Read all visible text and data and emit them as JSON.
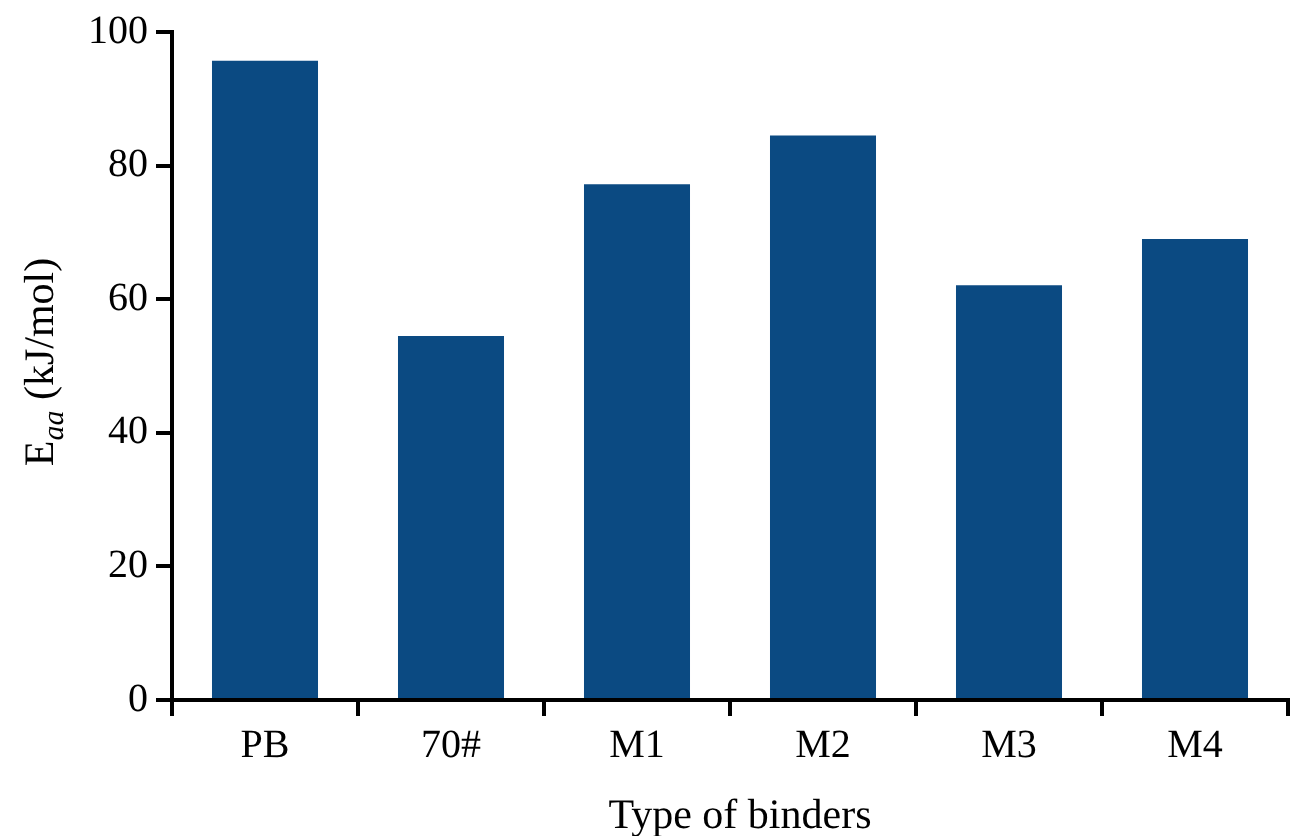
{
  "chart_data": {
    "type": "bar",
    "xlabel": "Type of binders",
    "ylabel": "E$_{aa}$ (kJ/mol)",
    "categories": [
      "PB",
      "70#",
      "M1",
      "M2",
      "M3",
      "M4"
    ],
    "values": [
      95.7,
      54.5,
      77.2,
      84.5,
      62.1,
      69.0
    ],
    "color": "#0b4a82",
    "ylim": [
      0,
      100
    ],
    "yticks": [
      0,
      20,
      40,
      60,
      80,
      100
    ],
    "grid": false,
    "legend": false
  }
}
